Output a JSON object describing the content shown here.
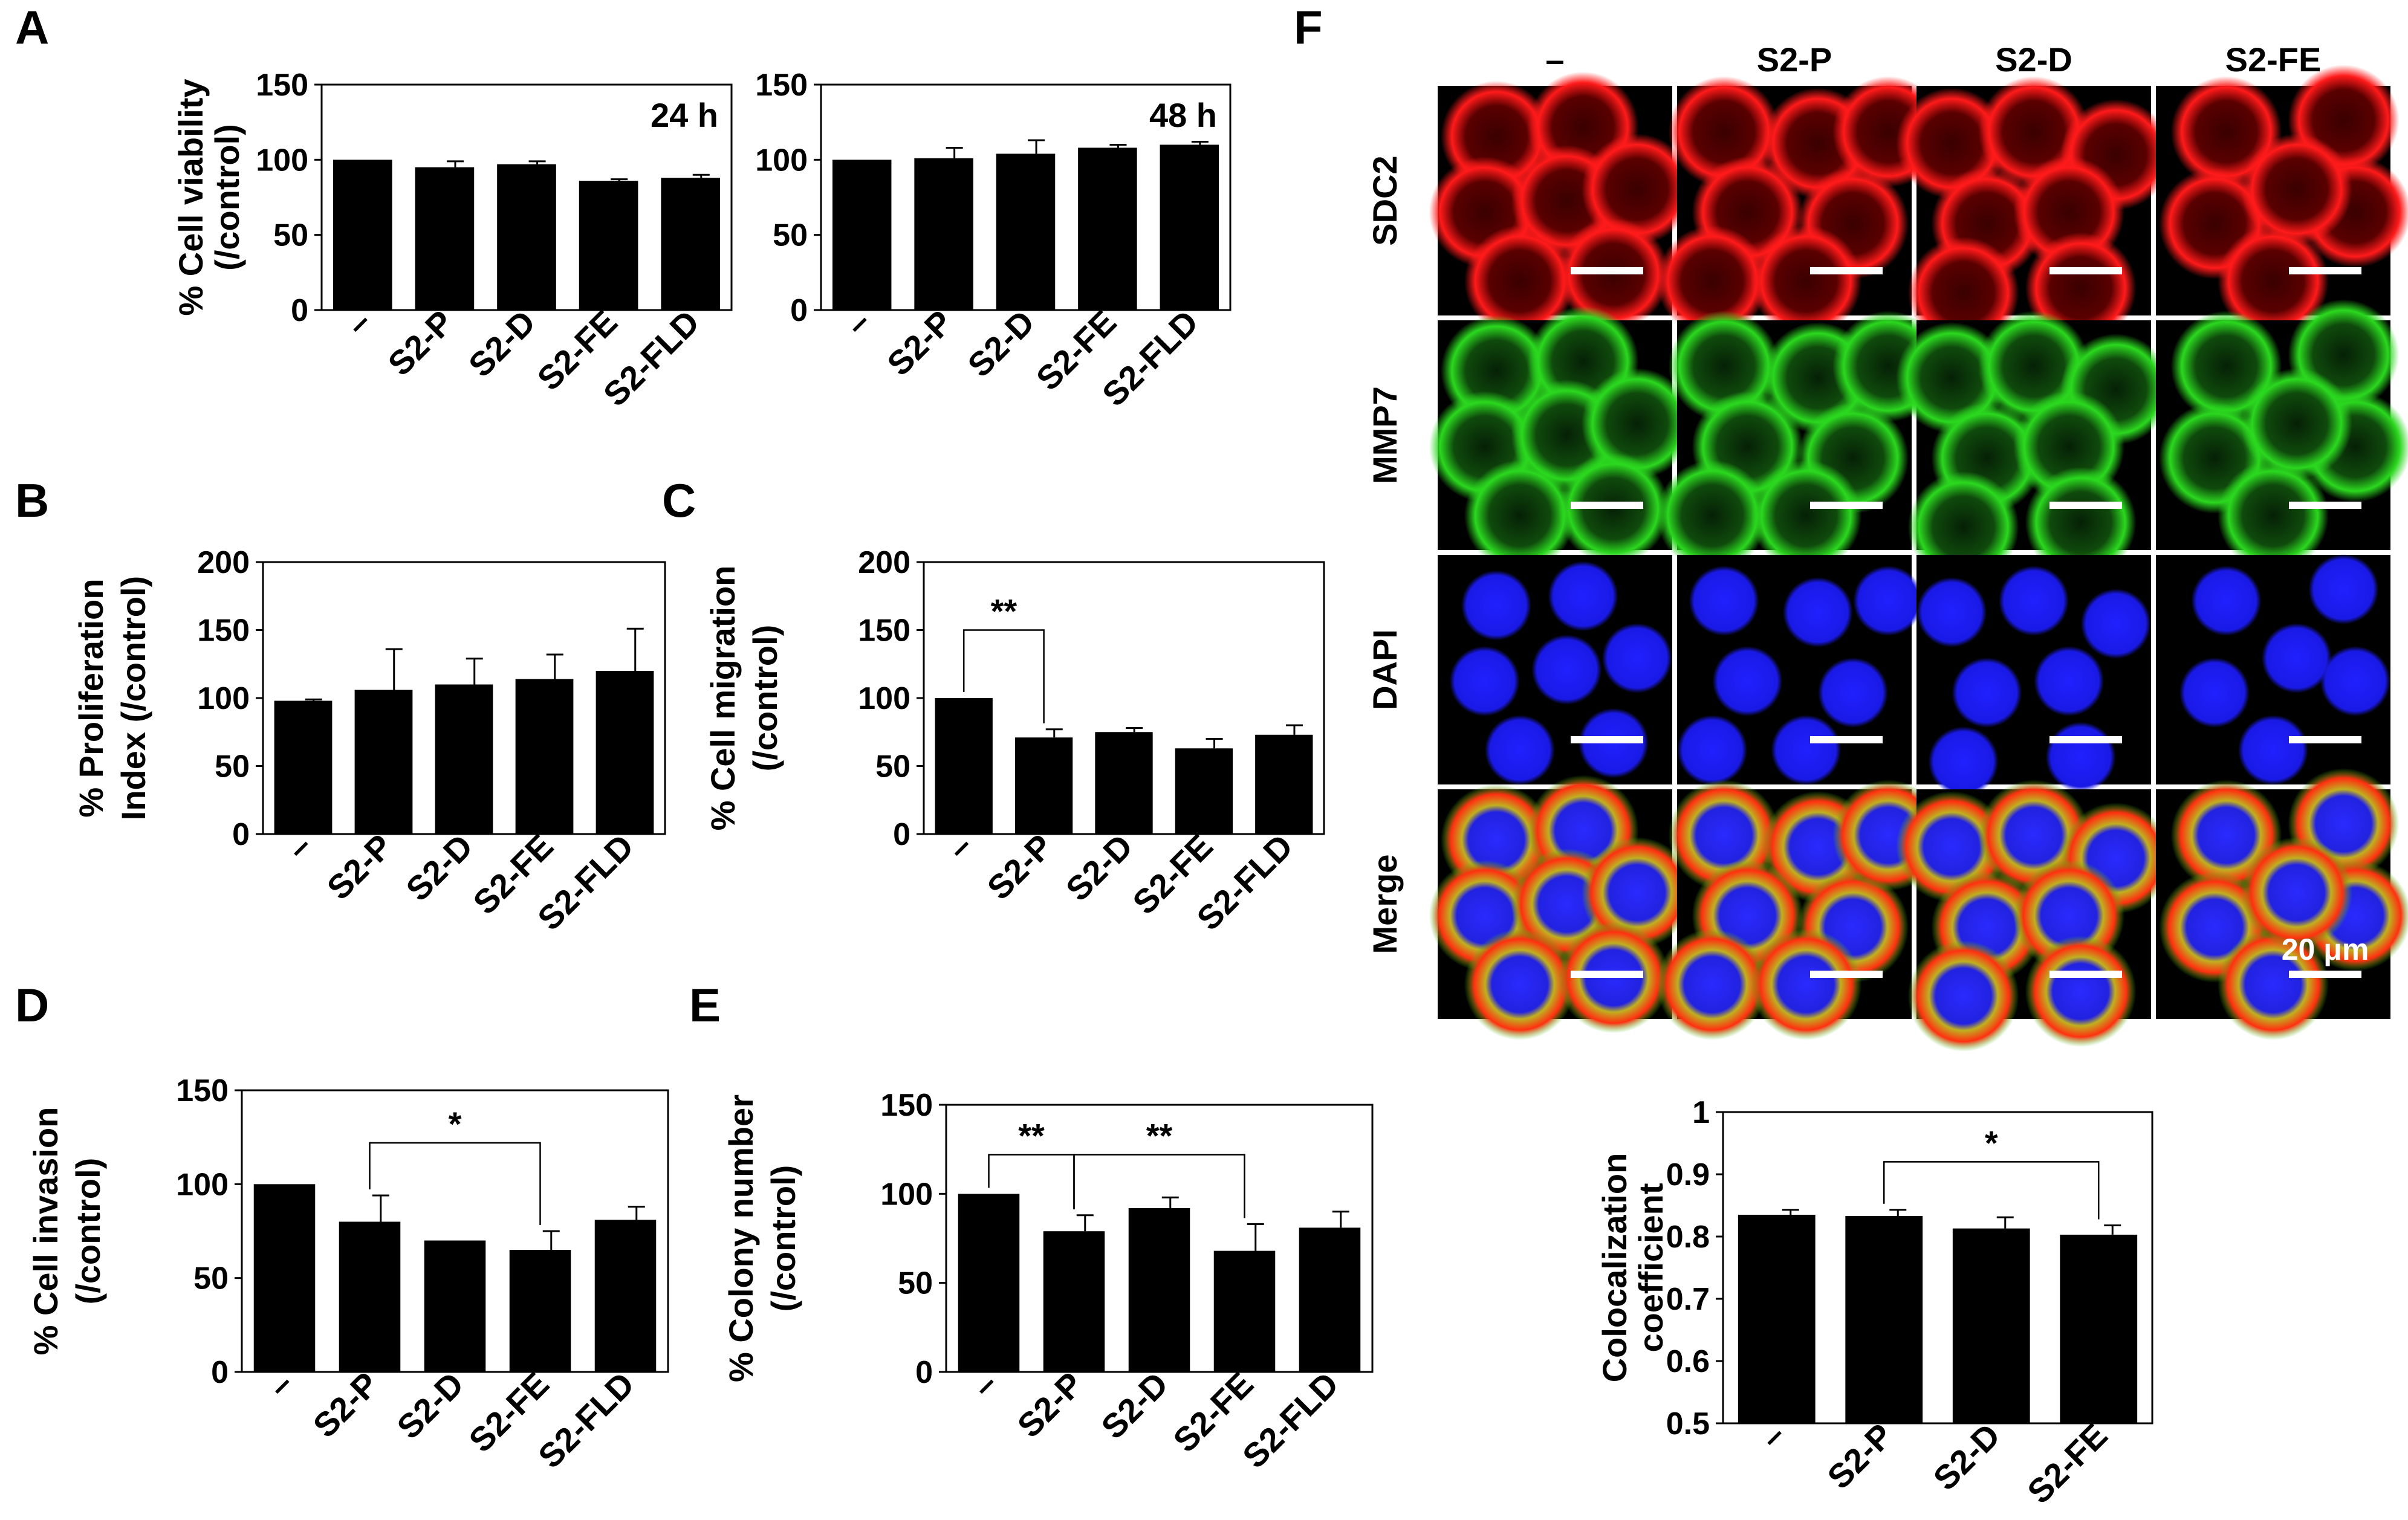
{
  "panel_letters": [
    "A",
    "B",
    "C",
    "D",
    "E",
    "F"
  ],
  "chart_data": [
    {
      "id": "A1",
      "panel": "A",
      "type": "bar",
      "categories": [
        "–",
        "S2-P",
        "S2-D",
        "S2-FE",
        "S2-FLD"
      ],
      "values": [
        100,
        95,
        97,
        86,
        88
      ],
      "errors": [
        0,
        4,
        2,
        1,
        2
      ],
      "ylabel_lines": [
        "% Cell viability",
        "(/control)"
      ],
      "ylim": [
        0,
        150
      ],
      "yticks": [
        0,
        50,
        100,
        150
      ],
      "inner_label": "24 h",
      "significance": []
    },
    {
      "id": "A2",
      "panel": "A",
      "type": "bar",
      "categories": [
        "–",
        "S2-P",
        "S2-D",
        "S2-FE",
        "S2-FLD"
      ],
      "values": [
        100,
        101,
        104,
        108,
        110
      ],
      "errors": [
        0,
        7,
        9,
        2,
        2
      ],
      "ylabel_lines": [],
      "ylim": [
        0,
        150
      ],
      "yticks": [
        0,
        50,
        100,
        150
      ],
      "inner_label": "48 h",
      "significance": []
    },
    {
      "id": "B",
      "panel": "B",
      "type": "bar",
      "categories": [
        "–",
        "S2-P",
        "S2-D",
        "S2-FE",
        "S2-FLD"
      ],
      "values": [
        98,
        106,
        110,
        114,
        120
      ],
      "errors": [
        1,
        30,
        19,
        18,
        31
      ],
      "ylabel_lines": [
        "% Proliferation",
        "Index (/control)"
      ],
      "ylim": [
        0,
        200
      ],
      "yticks": [
        0,
        50,
        100,
        150,
        200
      ],
      "inner_label": "",
      "significance": []
    },
    {
      "id": "C",
      "panel": "C",
      "type": "bar",
      "categories": [
        "–",
        "S2-P",
        "S2-D",
        "S2-FE",
        "S2-FLD"
      ],
      "values": [
        100,
        71,
        75,
        63,
        73
      ],
      "errors": [
        0,
        6,
        3,
        7,
        7
      ],
      "ylabel_lines": [
        "% Cell migration",
        "(/control)"
      ],
      "ylim": [
        0,
        200
      ],
      "yticks": [
        0,
        50,
        100,
        150,
        200
      ],
      "inner_label": "",
      "significance": [
        {
          "from": 0,
          "to": 1,
          "label": "**",
          "level": 150
        }
      ]
    },
    {
      "id": "D",
      "panel": "D",
      "type": "bar",
      "categories": [
        "–",
        "S2-P",
        "S2-D",
        "S2-FE",
        "S2-FLD"
      ],
      "values": [
        100,
        80,
        70,
        65,
        81
      ],
      "errors": [
        0,
        14,
        0,
        10,
        7
      ],
      "ylabel_lines": [
        "% Cell invasion",
        "(/control)"
      ],
      "ylim": [
        0,
        150
      ],
      "yticks": [
        0,
        50,
        100,
        150
      ],
      "inner_label": "",
      "significance": [
        {
          "from": 1,
          "to": 3,
          "label": "*",
          "level": 122
        }
      ]
    },
    {
      "id": "E",
      "panel": "E",
      "type": "bar",
      "categories": [
        "–",
        "S2-P",
        "S2-D",
        "S2-FE",
        "S2-FLD"
      ],
      "values": [
        100,
        79,
        92,
        68,
        81
      ],
      "errors": [
        0,
        9,
        6,
        15,
        9
      ],
      "ylabel_lines": [
        "% Colony number",
        "(/control)"
      ],
      "ylim": [
        0,
        150
      ],
      "yticks": [
        0,
        50,
        100,
        150
      ],
      "inner_label": "",
      "significance": [
        {
          "from": 0,
          "to": 1,
          "label": "**",
          "level": 122
        },
        {
          "from": 1,
          "to": 3,
          "label": "**",
          "level": 122
        }
      ]
    },
    {
      "id": "F_coloc",
      "panel": "F",
      "type": "bar",
      "categories": [
        "–",
        "S2-P",
        "S2-D",
        "S2-FE"
      ],
      "values": [
        0.835,
        0.833,
        0.813,
        0.803
      ],
      "errors": [
        0.008,
        0.01,
        0.018,
        0.015
      ],
      "ylabel_lines": [
        "Colocalization",
        "coefficient"
      ],
      "ylim": [
        0.5,
        1
      ],
      "yticks": [
        0.5,
        0.6,
        0.7,
        0.8,
        0.9,
        1
      ],
      "inner_label": "",
      "significance": [
        {
          "from": 1,
          "to": 3,
          "label": "*",
          "level": 0.92
        }
      ]
    }
  ],
  "microscopy": {
    "columns": [
      "–",
      "S2-P",
      "S2-D",
      "S2-FE"
    ],
    "rows": [
      {
        "label": "SDC2",
        "stain": "red"
      },
      {
        "label": "MMP7",
        "stain": "green"
      },
      {
        "label": "DAPI",
        "stain": "blue"
      },
      {
        "label": "Merge",
        "stain": "merge"
      }
    ],
    "scale_bar_label": "20 μm",
    "colors": {
      "red": "#ff1a1a",
      "green": "#29e01f",
      "blue": "#1a1aff",
      "background": "#000000"
    }
  }
}
